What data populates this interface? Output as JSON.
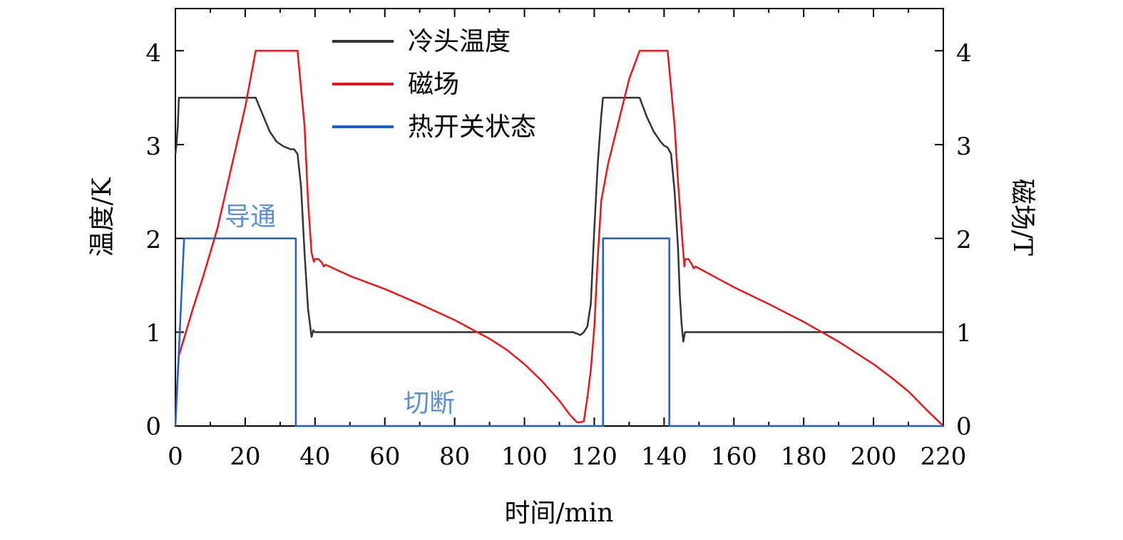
{
  "chart_data": {
    "type": "line",
    "xlabel": "时间/min",
    "ylabel_left": "温度/K",
    "ylabel_right": "磁场/T",
    "xlim": [
      0,
      220
    ],
    "ylim_left": [
      0,
      4.45
    ],
    "ylim_right": [
      0,
      4.45
    ],
    "x_ticks": [
      "0",
      "20",
      "40",
      "60",
      "80",
      "100",
      "120",
      "140",
      "160",
      "180",
      "200",
      "220"
    ],
    "y_ticks_left": [
      "0",
      "1",
      "2",
      "3",
      "4"
    ],
    "y_ticks_right": [
      "0",
      "1",
      "2",
      "3",
      "4"
    ],
    "legend": {
      "placement": "top-left"
    },
    "annotations": [
      "导通",
      "切断"
    ],
    "series": [
      {
        "name": "冷头温度",
        "color": "#333333",
        "axis": "left",
        "x": [
          0,
          0.3,
          0.7,
          1,
          10,
          23,
          25,
          27,
          29,
          31,
          33,
          34,
          35,
          36,
          37,
          38,
          39,
          39.5,
          40,
          50,
          60,
          80,
          100,
          114,
          116,
          117,
          118,
          119,
          120,
          121,
          122,
          122.5,
          130,
          133,
          135,
          137,
          139,
          140,
          141,
          142,
          143,
          144,
          144.5,
          145,
          145.5,
          146,
          150,
          160,
          180,
          200,
          220
        ],
        "y": [
          2.9,
          3.0,
          3.2,
          3.5,
          3.5,
          3.5,
          3.32,
          3.14,
          3.03,
          2.98,
          2.95,
          2.95,
          2.9,
          2.55,
          1.85,
          1.25,
          0.95,
          1.02,
          1.0,
          1.0,
          1.0,
          1.0,
          1.0,
          1.0,
          0.97,
          1.0,
          1.06,
          1.3,
          2.1,
          2.8,
          3.3,
          3.5,
          3.5,
          3.5,
          3.3,
          3.14,
          3.03,
          2.99,
          2.97,
          2.9,
          2.5,
          1.9,
          1.4,
          1.1,
          0.9,
          1.0,
          1.0,
          1.0,
          1.0,
          1.0,
          1.0
        ]
      },
      {
        "name": "磁场",
        "color": "#e31a1c",
        "axis": "right",
        "x": [
          0,
          0.3,
          1,
          3,
          5,
          8,
          12,
          16,
          20,
          23,
          35,
          37,
          38,
          39,
          39.7,
          40,
          41,
          42,
          42.5,
          43,
          50,
          60,
          70,
          80,
          90,
          95,
          100,
          105,
          110,
          113,
          114,
          115,
          116,
          117,
          118,
          119,
          120,
          121,
          122,
          123,
          124,
          126,
          128,
          130,
          132,
          133,
          141,
          143,
          144,
          145,
          145.8,
          146,
          147,
          148,
          148.5,
          149,
          160,
          170,
          180,
          190,
          200,
          205,
          210,
          215,
          220
        ],
        "y": [
          0,
          0.3,
          0.75,
          1.0,
          1.25,
          1.6,
          2.1,
          2.75,
          3.4,
          4.0,
          4.0,
          3.2,
          2.4,
          1.85,
          1.75,
          1.78,
          1.78,
          1.74,
          1.7,
          1.72,
          1.6,
          1.46,
          1.3,
          1.13,
          0.93,
          0.81,
          0.66,
          0.48,
          0.27,
          0.12,
          0.08,
          0.04,
          0.04,
          0.05,
          0.3,
          0.6,
          1.05,
          1.8,
          2.4,
          2.6,
          2.8,
          3.1,
          3.4,
          3.7,
          3.9,
          4.0,
          4.0,
          3.2,
          2.6,
          2.1,
          1.7,
          1.78,
          1.78,
          1.72,
          1.68,
          1.7,
          1.48,
          1.3,
          1.11,
          0.9,
          0.66,
          0.52,
          0.37,
          0.18,
          0.0
        ]
      },
      {
        "name": "热开关状态",
        "color": "#1f5fc8",
        "axis": "left",
        "x": [
          0,
          2.5,
          34.5,
          34.5,
          122.5,
          122.5,
          141.5,
          141.5,
          220
        ],
        "y": [
          0,
          2,
          2,
          0,
          0,
          2,
          2,
          0,
          0
        ]
      }
    ]
  }
}
